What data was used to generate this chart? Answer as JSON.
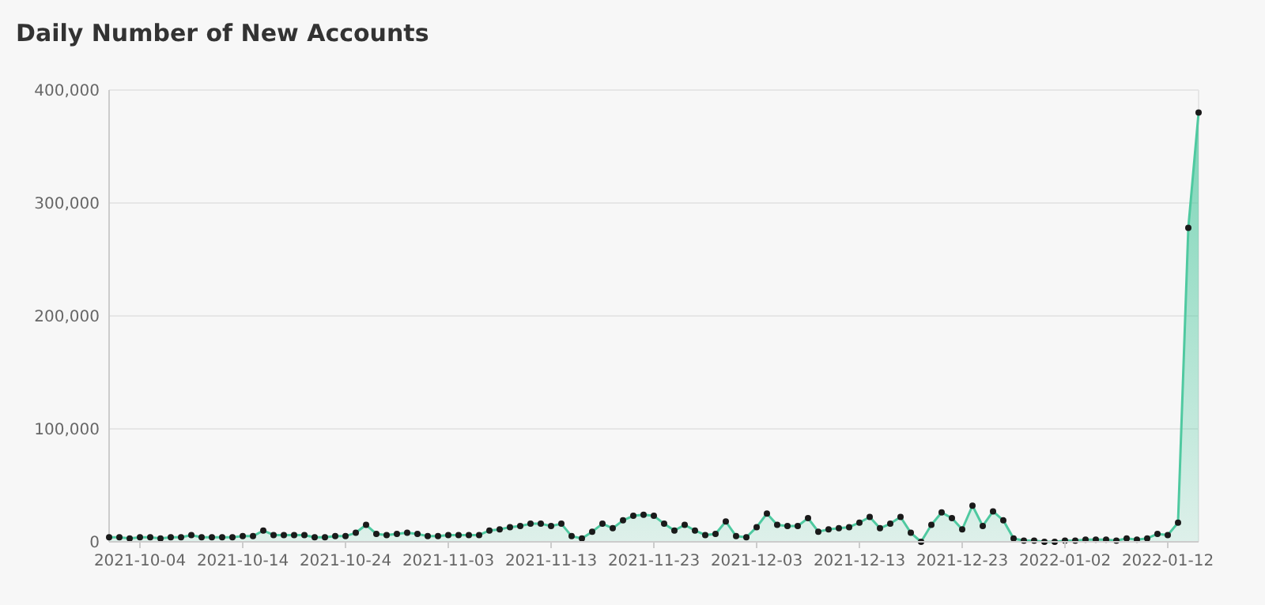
{
  "chart_data": {
    "type": "area",
    "title": "Daily Number of New Accounts",
    "x": [
      "2021-10-01",
      "2021-10-02",
      "2021-10-03",
      "2021-10-04",
      "2021-10-05",
      "2021-10-06",
      "2021-10-07",
      "2021-10-08",
      "2021-10-09",
      "2021-10-10",
      "2021-10-11",
      "2021-10-12",
      "2021-10-13",
      "2021-10-14",
      "2021-10-15",
      "2021-10-16",
      "2021-10-17",
      "2021-10-18",
      "2021-10-19",
      "2021-10-20",
      "2021-10-21",
      "2021-10-22",
      "2021-10-23",
      "2021-10-24",
      "2021-10-25",
      "2021-10-26",
      "2021-10-27",
      "2021-10-28",
      "2021-10-29",
      "2021-10-30",
      "2021-10-31",
      "2021-11-01",
      "2021-11-02",
      "2021-11-03",
      "2021-11-04",
      "2021-11-05",
      "2021-11-06",
      "2021-11-07",
      "2021-11-08",
      "2021-11-09",
      "2021-11-10",
      "2021-11-11",
      "2021-11-12",
      "2021-11-13",
      "2021-11-14",
      "2021-11-15",
      "2021-11-16",
      "2021-11-17",
      "2021-11-18",
      "2021-11-19",
      "2021-11-20",
      "2021-11-21",
      "2021-11-22",
      "2021-11-23",
      "2021-11-24",
      "2021-11-25",
      "2021-11-26",
      "2021-11-27",
      "2021-11-28",
      "2021-11-29",
      "2021-11-30",
      "2021-12-01",
      "2021-12-02",
      "2021-12-03",
      "2021-12-04",
      "2021-12-05",
      "2021-12-06",
      "2021-12-07",
      "2021-12-08",
      "2021-12-09",
      "2021-12-10",
      "2021-12-11",
      "2021-12-12",
      "2021-12-13",
      "2021-12-14",
      "2021-12-15",
      "2021-12-16",
      "2021-12-17",
      "2021-12-18",
      "2021-12-19",
      "2021-12-20",
      "2021-12-21",
      "2021-12-22",
      "2021-12-23",
      "2021-12-24",
      "2021-12-25",
      "2021-12-26",
      "2021-12-27",
      "2021-12-28",
      "2021-12-29",
      "2021-12-30",
      "2021-12-31",
      "2022-01-01",
      "2022-01-02",
      "2022-01-03",
      "2022-01-04",
      "2022-01-05",
      "2022-01-06",
      "2022-01-07",
      "2022-01-08",
      "2022-01-09",
      "2022-01-10",
      "2022-01-11",
      "2022-01-12",
      "2022-01-13",
      "2022-01-14",
      "2022-01-15"
    ],
    "series": [
      {
        "color": "#4fc9a0",
        "values": [
          4000,
          4000,
          3000,
          4000,
          4000,
          3000,
          4000,
          4000,
          6000,
          4000,
          4000,
          4000,
          4000,
          5000,
          5000,
          10000,
          6000,
          6000,
          6000,
          6000,
          4000,
          4000,
          5000,
          5000,
          8000,
          15000,
          7000,
          6000,
          7000,
          8000,
          7000,
          5000,
          5000,
          6000,
          6000,
          6000,
          6000,
          10000,
          11000,
          13000,
          14000,
          16000,
          16000,
          14000,
          16000,
          5000,
          3000,
          9000,
          16000,
          12000,
          19000,
          23000,
          24000,
          23000,
          16000,
          10000,
          15000,
          10000,
          6000,
          7000,
          18000,
          5000,
          4000,
          13000,
          25000,
          15000,
          14000,
          14000,
          21000,
          9000,
          11000,
          12000,
          13000,
          17000,
          22000,
          12000,
          16000,
          22000,
          8000,
          0,
          15000,
          26000,
          21000,
          11000,
          32000,
          14000,
          27000,
          19000,
          3000,
          1000,
          1000,
          0,
          0,
          1000,
          1000,
          2000,
          2000,
          2000,
          1000,
          3000,
          2000,
          3000,
          7000,
          6000,
          17000,
          278000,
          380000
        ]
      }
    ],
    "xlim": [
      "2021-10-01",
      "2022-01-15"
    ],
    "xticks": [
      "2021-10-04",
      "2021-10-14",
      "2021-10-24",
      "2021-11-03",
      "2021-11-13",
      "2021-11-23",
      "2021-12-03",
      "2021-12-13",
      "2021-12-23",
      "2022-01-02",
      "2022-01-12"
    ],
    "ylim": [
      0,
      400000
    ],
    "yticks": [
      0,
      {
        "value": 100000,
        "label": "100,000"
      },
      {
        "value": 200000,
        "label": "200,000"
      },
      {
        "value": 300000,
        "label": "300,000"
      },
      {
        "value": 400000,
        "label": "400,000"
      }
    ],
    "grid": "y",
    "marker": "circle"
  }
}
